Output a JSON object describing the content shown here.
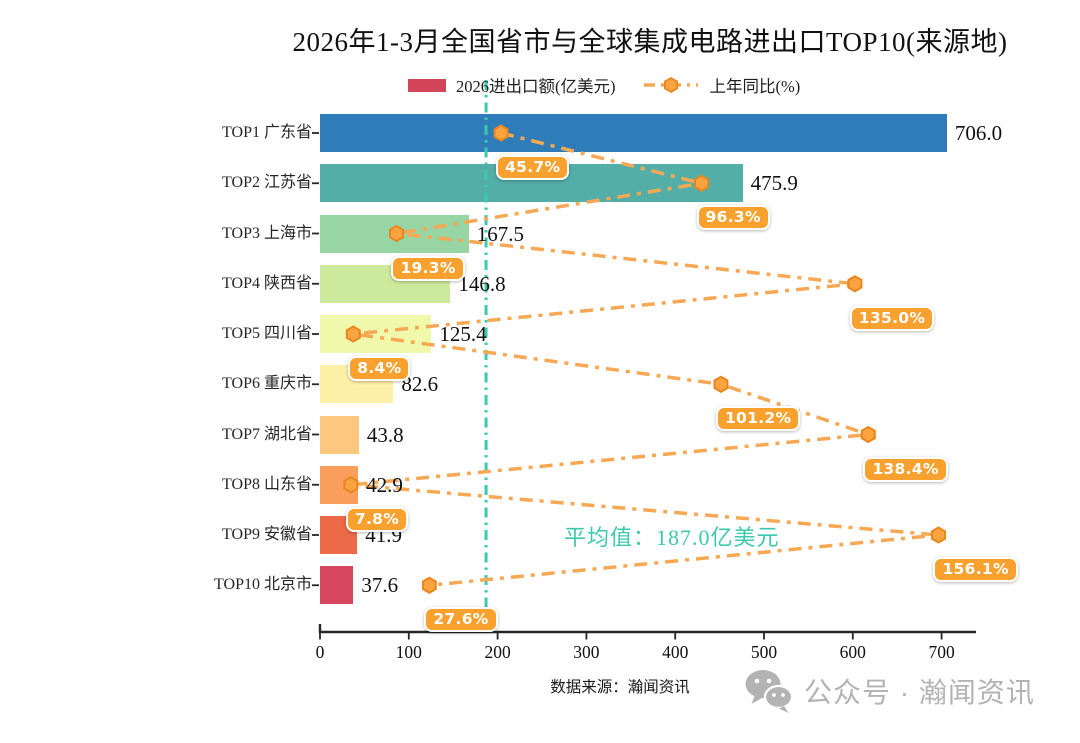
{
  "title": "2026年1-3月全国省市与全球集成电路进出口TOP10(来源地)",
  "legend": {
    "bar_label": "2026进出口额(亿美元)",
    "line_label": "上年同比(%)",
    "bar_swatch_color": "#d5455a"
  },
  "average_label": "平均值：187.0亿美元",
  "footer": {
    "source": "数据来源：瀚闻资讯",
    "watermark": "公众号 · 瀚闻资讯"
  },
  "colors": {
    "pct_box_bg": "#f8a12f",
    "line_orange": "#f7a855",
    "marker_fill": "#f9a440",
    "marker_edge": "#e8871e",
    "average_teal": "#3dc9ad",
    "axis": "#262626",
    "watermark_gray": "#b3b3b3"
  },
  "chart_data": {
    "type": "bar",
    "orientation": "horizontal, bars with overlaid dash-dot line on secondary percent axis",
    "title": "2026年1-3月全国省市与全球集成电路进出口TOP10(来源地)",
    "categories": [
      "TOP1 广东省",
      "TOP2 江苏省",
      "TOP3 上海市",
      "TOP4 陕西省",
      "TOP5 四川省",
      "TOP6 重庆市",
      "TOP7 湖北省",
      "TOP8 山东省",
      "TOP9 安徽省",
      "TOP10 北京市"
    ],
    "series": [
      {
        "name": "2026进出口额(亿美元)",
        "type": "bar",
        "values": [
          706.0,
          475.9,
          167.5,
          146.8,
          125.4,
          82.6,
          43.8,
          42.9,
          41.9,
          37.6
        ],
        "value_labels": [
          "706.0",
          "475.9",
          "167.5",
          "146.8",
          "125.4",
          "82.6",
          "43.8",
          "42.9",
          "41.9",
          "37.6"
        ],
        "bar_colors": [
          "#2f7db8",
          "#52aea6",
          "#98d5a4",
          "#cce99c",
          "#f0f8ab",
          "#fef0a7",
          "#fdc77d",
          "#fa9f5b",
          "#ec6a47",
          "#d6465c"
        ]
      },
      {
        "name": "上年同比(%)",
        "type": "line",
        "values": [
          45.7,
          96.3,
          19.3,
          135.0,
          8.4,
          101.2,
          138.4,
          7.8,
          156.1,
          27.6
        ],
        "point_labels": [
          "45.7%",
          "96.3%",
          "19.3%",
          "135.0%",
          "8.4%",
          "101.2%",
          "138.4%",
          "7.8%",
          "156.1%",
          "27.6%"
        ],
        "color": "#f7a855",
        "marker": "hexagon",
        "line_style": "dash-dot"
      }
    ],
    "x_ticks": [
      "0",
      "100",
      "200",
      "300",
      "400",
      "500",
      "600",
      "700"
    ],
    "xlim": [
      0,
      738
    ],
    "pct_xlim": [
      0,
      164
    ],
    "average_line": {
      "value": 187.0,
      "label": "平均值：187.0亿美元",
      "style": "vertical dash-dot"
    },
    "legend_position": "top",
    "grid": false
  }
}
